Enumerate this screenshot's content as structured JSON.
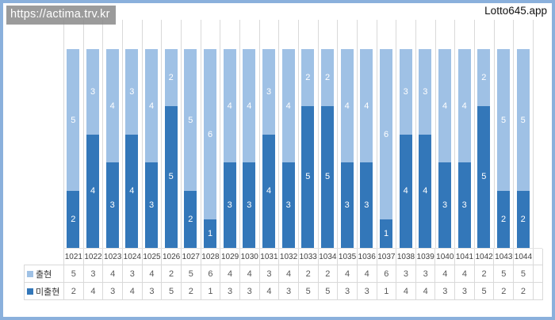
{
  "page": {
    "url_overlay": "https://actima.trv.kr",
    "app_label": "Lotto645.app"
  },
  "colors": {
    "series_appear": "#9fc1e5",
    "series_not_appear": "#3377b9",
    "page_border": "#8ab0dc",
    "gridline": "#d9d9d9"
  },
  "chart_data": {
    "type": "bar",
    "stacked": true,
    "title": "",
    "xlabel": "",
    "ylabel": "",
    "ylim": [
      0,
      8
    ],
    "total_per_bar": 7,
    "gridlines": "vertical category separators only",
    "data_labels": "white numbers centered inside each segment",
    "legend_position": "table row headers at bottom-left",
    "stack_order_bottom_to_top": [
      "미출현",
      "출현"
    ],
    "categories": [
      "1021",
      "1022",
      "1023",
      "1024",
      "1025",
      "1026",
      "1027",
      "1028",
      "1029",
      "1030",
      "1031",
      "1032",
      "1033",
      "1034",
      "1035",
      "1036",
      "1037",
      "1038",
      "1039",
      "1040",
      "1041",
      "1042",
      "1043",
      "1044"
    ],
    "series": [
      {
        "name": "출현",
        "color": "#9fc1e5",
        "values": [
          5,
          3,
          4,
          3,
          4,
          2,
          5,
          6,
          4,
          4,
          3,
          4,
          2,
          2,
          4,
          4,
          6,
          3,
          3,
          4,
          4,
          2,
          5,
          5
        ]
      },
      {
        "name": "미출현",
        "color": "#3377b9",
        "values": [
          2,
          4,
          3,
          4,
          3,
          5,
          2,
          1,
          3,
          3,
          4,
          3,
          5,
          5,
          3,
          3,
          1,
          4,
          4,
          3,
          3,
          5,
          2,
          2
        ]
      }
    ]
  }
}
